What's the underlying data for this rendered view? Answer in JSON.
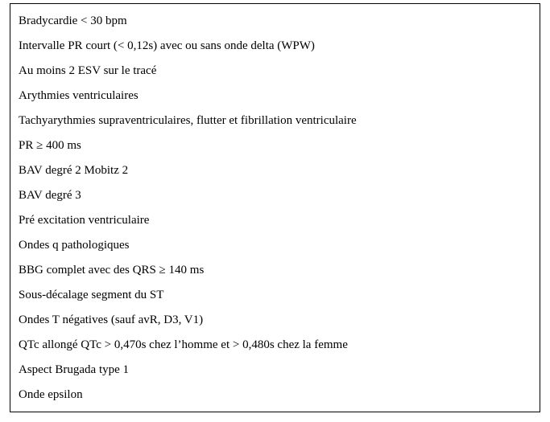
{
  "criteria": {
    "items": [
      "Bradycardie < 30 bpm",
      "Intervalle PR court (< 0,12s) avec ou sans onde delta (WPW)",
      "Au moins 2 ESV sur le tracé",
      "Arythmies ventriculaires",
      "Tachyarythmies supraventriculaires, flutter et fibrillation ventriculaire",
      "PR ≥ 400 ms",
      "BAV degré 2 Mobitz 2",
      "BAV degré 3",
      "Pré excitation ventriculaire",
      "Ondes q pathologiques",
      "BBG complet avec des QRS ≥ 140 ms",
      "Sous-décalage segment du ST",
      "Ondes T négatives (sauf avR, D3, V1)",
      "QTc allongé QTc > 0,470s chez l’homme et > 0,480s chez la femme",
      "Aspect Brugada type 1",
      "Onde epsilon"
    ]
  },
  "style": {
    "border_color": "#000000",
    "background_color": "#ffffff",
    "text_color": "#000000",
    "font_family": "Times New Roman",
    "font_size_pt": 11
  }
}
